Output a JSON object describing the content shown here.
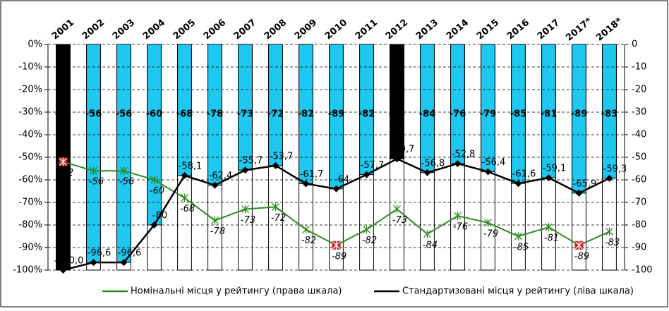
{
  "chart_data": {
    "type": "bar-line",
    "categories": [
      "2001",
      "2002",
      "2003",
      "2004",
      "2005",
      "2006",
      "2007",
      "2008",
      "2009",
      "2010",
      "2011",
      "2012",
      "2013",
      "2014",
      "2015",
      "2016",
      "2017",
      "2017*",
      "2018*"
    ],
    "bars": {
      "values": [
        -100,
        -96.6,
        -96.6,
        -80,
        -58.1,
        -62.4,
        -55.7,
        -53.7,
        -61.7,
        -64,
        -57.7,
        -50.7,
        -56.8,
        -52.8,
        -56.4,
        -61.6,
        -59.1,
        -65.9,
        -59.3
      ],
      "colors": [
        "#000000",
        "#1ec8f0",
        "#1ec8f0",
        "#1ec8f0",
        "#1ec8f0",
        "#1ec8f0",
        "#1ec8f0",
        "#1ec8f0",
        "#1ec8f0",
        "#1ec8f0",
        "#1ec8f0",
        "#000000",
        "#1ec8f0",
        "#1ec8f0",
        "#1ec8f0",
        "#1ec8f0",
        "#1ec8f0",
        "#1ec8f0",
        "#1ec8f0"
      ]
    },
    "series": [
      {
        "name": "Номінальні місця у рейтингу (права шкала)",
        "color": "#2e8b1e",
        "axis": "y2",
        "values": [
          -52,
          -56,
          -56,
          -60,
          -68,
          -78,
          -73,
          -72,
          -82,
          -89,
          -82,
          -73,
          -84,
          -76,
          -79,
          -85,
          -81,
          -89,
          -83
        ],
        "highlight_color": "#cc1f1f",
        "highlight_points": [
          0,
          9,
          17
        ]
      },
      {
        "name": "Стандартизовані місця у рейтингу (ліва шкала)",
        "color": "#000000",
        "values": [
          -100,
          -96.6,
          -96.6,
          -80,
          -58.1,
          -62.4,
          -55.7,
          -53.7,
          -61.7,
          -64,
          -57.7,
          -50.7,
          -56.8,
          -52.8,
          -56.4,
          -61.6,
          -59.1,
          -65.9,
          -59.3
        ],
        "value_labels": [
          "-100,0",
          "-96,6",
          "-96,6",
          "-80",
          "-58,1",
          "-62,4",
          "-55,7",
          "-53,7",
          "-61,7",
          "-64",
          "-57,7",
          "-50,7",
          "-56,8",
          "-52,8",
          "-56,4",
          "-61,6",
          "-59,1",
          "-65,9",
          "-59,3"
        ]
      }
    ],
    "ylim": [
      -100,
      0
    ],
    "yticks": [
      {
        "value": -100,
        "label": "-100%"
      },
      {
        "value": -90,
        "label": "-90%"
      },
      {
        "value": -80,
        "label": "-80%"
      },
      {
        "value": -70,
        "label": "-70%"
      },
      {
        "value": -60,
        "label": "-60%"
      },
      {
        "value": -50,
        "label": "-50%"
      },
      {
        "value": -40,
        "label": "-40%"
      },
      {
        "value": -30,
        "label": "-30%"
      },
      {
        "value": -20,
        "label": "-20%"
      },
      {
        "value": -10,
        "label": "-10%"
      },
      {
        "value": 0,
        "label": "0%"
      }
    ],
    "y2lim": [
      -100,
      0
    ],
    "y2ticks": [
      -100,
      -90,
      -80,
      -70,
      -60,
      -50,
      -40,
      -30,
      -20,
      -10,
      0
    ],
    "grid": true
  }
}
